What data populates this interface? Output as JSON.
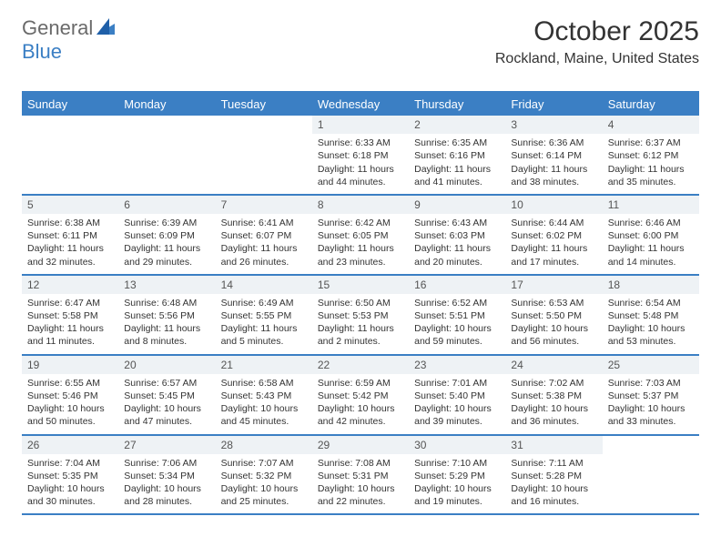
{
  "logo": {
    "text1": "General",
    "text2": "Blue"
  },
  "title": "October 2025",
  "location": "Rockland, Maine, United States",
  "colors": {
    "accent": "#3b7fc4",
    "daynum_bg": "#eef2f5",
    "text": "#333333",
    "background": "#ffffff"
  },
  "days_of_week": [
    "Sunday",
    "Monday",
    "Tuesday",
    "Wednesday",
    "Thursday",
    "Friday",
    "Saturday"
  ],
  "weeks": [
    [
      {
        "day": "",
        "sunrise": "",
        "sunset": "",
        "daylight": ""
      },
      {
        "day": "",
        "sunrise": "",
        "sunset": "",
        "daylight": ""
      },
      {
        "day": "",
        "sunrise": "",
        "sunset": "",
        "daylight": ""
      },
      {
        "day": "1",
        "sunrise": "Sunrise: 6:33 AM",
        "sunset": "Sunset: 6:18 PM",
        "daylight": "Daylight: 11 hours and 44 minutes."
      },
      {
        "day": "2",
        "sunrise": "Sunrise: 6:35 AM",
        "sunset": "Sunset: 6:16 PM",
        "daylight": "Daylight: 11 hours and 41 minutes."
      },
      {
        "day": "3",
        "sunrise": "Sunrise: 6:36 AM",
        "sunset": "Sunset: 6:14 PM",
        "daylight": "Daylight: 11 hours and 38 minutes."
      },
      {
        "day": "4",
        "sunrise": "Sunrise: 6:37 AM",
        "sunset": "Sunset: 6:12 PM",
        "daylight": "Daylight: 11 hours and 35 minutes."
      }
    ],
    [
      {
        "day": "5",
        "sunrise": "Sunrise: 6:38 AM",
        "sunset": "Sunset: 6:11 PM",
        "daylight": "Daylight: 11 hours and 32 minutes."
      },
      {
        "day": "6",
        "sunrise": "Sunrise: 6:39 AM",
        "sunset": "Sunset: 6:09 PM",
        "daylight": "Daylight: 11 hours and 29 minutes."
      },
      {
        "day": "7",
        "sunrise": "Sunrise: 6:41 AM",
        "sunset": "Sunset: 6:07 PM",
        "daylight": "Daylight: 11 hours and 26 minutes."
      },
      {
        "day": "8",
        "sunrise": "Sunrise: 6:42 AM",
        "sunset": "Sunset: 6:05 PM",
        "daylight": "Daylight: 11 hours and 23 minutes."
      },
      {
        "day": "9",
        "sunrise": "Sunrise: 6:43 AM",
        "sunset": "Sunset: 6:03 PM",
        "daylight": "Daylight: 11 hours and 20 minutes."
      },
      {
        "day": "10",
        "sunrise": "Sunrise: 6:44 AM",
        "sunset": "Sunset: 6:02 PM",
        "daylight": "Daylight: 11 hours and 17 minutes."
      },
      {
        "day": "11",
        "sunrise": "Sunrise: 6:46 AM",
        "sunset": "Sunset: 6:00 PM",
        "daylight": "Daylight: 11 hours and 14 minutes."
      }
    ],
    [
      {
        "day": "12",
        "sunrise": "Sunrise: 6:47 AM",
        "sunset": "Sunset: 5:58 PM",
        "daylight": "Daylight: 11 hours and 11 minutes."
      },
      {
        "day": "13",
        "sunrise": "Sunrise: 6:48 AM",
        "sunset": "Sunset: 5:56 PM",
        "daylight": "Daylight: 11 hours and 8 minutes."
      },
      {
        "day": "14",
        "sunrise": "Sunrise: 6:49 AM",
        "sunset": "Sunset: 5:55 PM",
        "daylight": "Daylight: 11 hours and 5 minutes."
      },
      {
        "day": "15",
        "sunrise": "Sunrise: 6:50 AM",
        "sunset": "Sunset: 5:53 PM",
        "daylight": "Daylight: 11 hours and 2 minutes."
      },
      {
        "day": "16",
        "sunrise": "Sunrise: 6:52 AM",
        "sunset": "Sunset: 5:51 PM",
        "daylight": "Daylight: 10 hours and 59 minutes."
      },
      {
        "day": "17",
        "sunrise": "Sunrise: 6:53 AM",
        "sunset": "Sunset: 5:50 PM",
        "daylight": "Daylight: 10 hours and 56 minutes."
      },
      {
        "day": "18",
        "sunrise": "Sunrise: 6:54 AM",
        "sunset": "Sunset: 5:48 PM",
        "daylight": "Daylight: 10 hours and 53 minutes."
      }
    ],
    [
      {
        "day": "19",
        "sunrise": "Sunrise: 6:55 AM",
        "sunset": "Sunset: 5:46 PM",
        "daylight": "Daylight: 10 hours and 50 minutes."
      },
      {
        "day": "20",
        "sunrise": "Sunrise: 6:57 AM",
        "sunset": "Sunset: 5:45 PM",
        "daylight": "Daylight: 10 hours and 47 minutes."
      },
      {
        "day": "21",
        "sunrise": "Sunrise: 6:58 AM",
        "sunset": "Sunset: 5:43 PM",
        "daylight": "Daylight: 10 hours and 45 minutes."
      },
      {
        "day": "22",
        "sunrise": "Sunrise: 6:59 AM",
        "sunset": "Sunset: 5:42 PM",
        "daylight": "Daylight: 10 hours and 42 minutes."
      },
      {
        "day": "23",
        "sunrise": "Sunrise: 7:01 AM",
        "sunset": "Sunset: 5:40 PM",
        "daylight": "Daylight: 10 hours and 39 minutes."
      },
      {
        "day": "24",
        "sunrise": "Sunrise: 7:02 AM",
        "sunset": "Sunset: 5:38 PM",
        "daylight": "Daylight: 10 hours and 36 minutes."
      },
      {
        "day": "25",
        "sunrise": "Sunrise: 7:03 AM",
        "sunset": "Sunset: 5:37 PM",
        "daylight": "Daylight: 10 hours and 33 minutes."
      }
    ],
    [
      {
        "day": "26",
        "sunrise": "Sunrise: 7:04 AM",
        "sunset": "Sunset: 5:35 PM",
        "daylight": "Daylight: 10 hours and 30 minutes."
      },
      {
        "day": "27",
        "sunrise": "Sunrise: 7:06 AM",
        "sunset": "Sunset: 5:34 PM",
        "daylight": "Daylight: 10 hours and 28 minutes."
      },
      {
        "day": "28",
        "sunrise": "Sunrise: 7:07 AM",
        "sunset": "Sunset: 5:32 PM",
        "daylight": "Daylight: 10 hours and 25 minutes."
      },
      {
        "day": "29",
        "sunrise": "Sunrise: 7:08 AM",
        "sunset": "Sunset: 5:31 PM",
        "daylight": "Daylight: 10 hours and 22 minutes."
      },
      {
        "day": "30",
        "sunrise": "Sunrise: 7:10 AM",
        "sunset": "Sunset: 5:29 PM",
        "daylight": "Daylight: 10 hours and 19 minutes."
      },
      {
        "day": "31",
        "sunrise": "Sunrise: 7:11 AM",
        "sunset": "Sunset: 5:28 PM",
        "daylight": "Daylight: 10 hours and 16 minutes."
      },
      {
        "day": "",
        "sunrise": "",
        "sunset": "",
        "daylight": ""
      }
    ]
  ]
}
